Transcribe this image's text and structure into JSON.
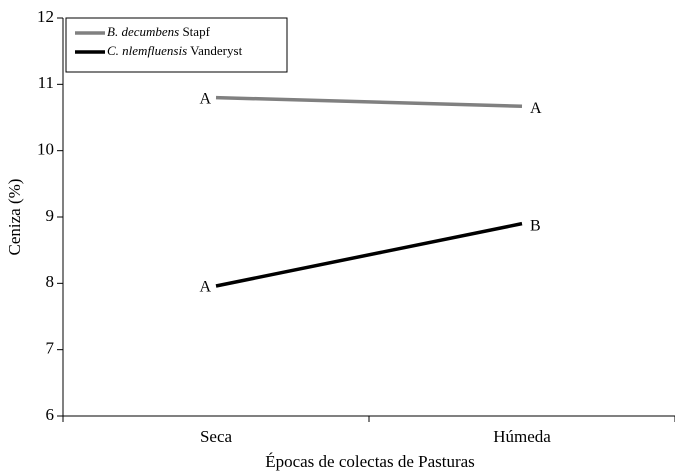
{
  "chart_data": {
    "type": "line",
    "categories": [
      "Seca",
      "Húmeda"
    ],
    "series": [
      {
        "name": "B. decumbens Stapf",
        "color": "#808080",
        "values": [
          10.8,
          10.67
        ],
        "letters": [
          "A",
          "A"
        ]
      },
      {
        "name": "C. nlemfluensis Vanderyst",
        "color": "#000000",
        "values": [
          7.96,
          8.9
        ],
        "letters": [
          "A",
          "B"
        ]
      }
    ],
    "xlabel": "Épocas de colectas de Pasturas",
    "ylabel": "Ceniza (%)",
    "ylim": [
      6,
      12
    ],
    "yticks": [
      6,
      7,
      8,
      9,
      10,
      11,
      12
    ],
    "legend": "upper left",
    "grid": false
  }
}
